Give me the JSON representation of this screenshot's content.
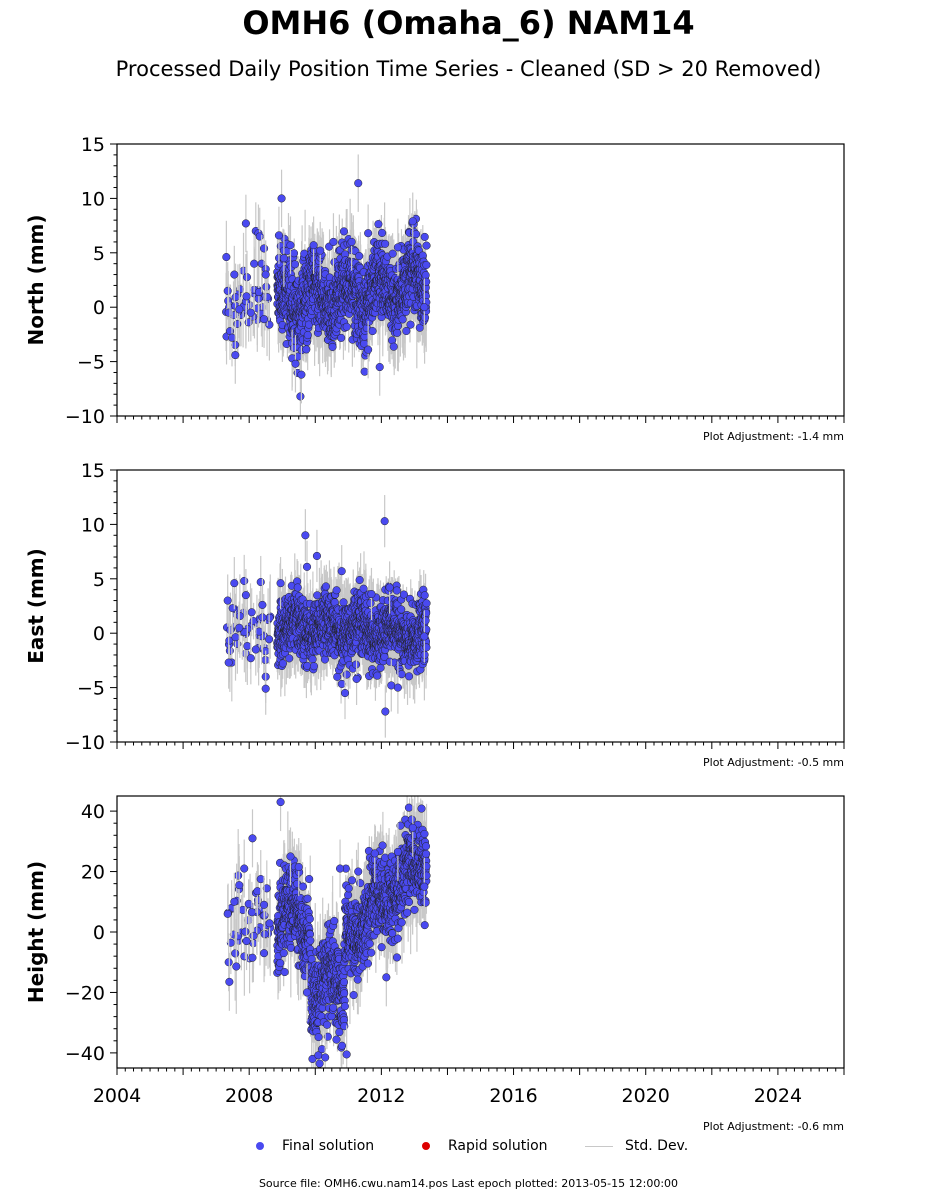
{
  "header": {
    "title": "OMH6 (Omaha_6) NAM14",
    "subtitle": "Processed Daily Position Time Series - Cleaned (SD > 20 Removed)"
  },
  "legend": {
    "final": "Final solution",
    "rapid": "Rapid solution",
    "stddev": "Std. Dev."
  },
  "footer": {
    "source": "Source file: OMH6.cwu.nam14.pos  Last epoch plotted: 2013-05-15 12:00:00"
  },
  "colors": {
    "final": "#4a4af0",
    "rapid": "#dd0000",
    "stddev": "#c8c8c8"
  },
  "chart_data": [
    {
      "type": "scatter",
      "ylabel": "North (mm)",
      "adjustment": "Plot Adjustment: -1.4 mm",
      "xlim": [
        2004,
        2026
      ],
      "ylim": [
        -10,
        15
      ],
      "xticks": [
        2004,
        2008,
        2012,
        2016,
        2020,
        2024
      ],
      "yticks": [
        -10,
        -5,
        0,
        5,
        10,
        15
      ],
      "series": [
        {
          "values": [
            [
              2007.35,
              1.5
            ],
            [
              2007.38,
              -0.5
            ],
            [
              2007.42,
              -2.2
            ],
            [
              2007.48,
              -2.8
            ],
            [
              2007.55,
              3.0
            ],
            [
              2007.58,
              -4.4
            ],
            [
              2007.7,
              -0.2
            ],
            [
              2007.9,
              7.7
            ],
            [
              2007.92,
              1.0
            ],
            [
              2008.05,
              -0.5
            ],
            [
              2008.15,
              4.0
            ],
            [
              2008.2,
              7.0
            ],
            [
              2008.28,
              6.8
            ],
            [
              2008.32,
              6.5
            ],
            [
              2008.38,
              4.0
            ],
            [
              2008.45,
              5.4
            ],
            [
              2008.45,
              -1.1
            ],
            [
              2008.5,
              3.5
            ],
            [
              2008.5,
              3.0
            ],
            [
              2008.9,
              6.6
            ],
            [
              2008.98,
              10.0
            ],
            [
              2009.05,
              4.5
            ],
            [
              2009.25,
              5.7
            ],
            [
              2009.3,
              -4.7
            ],
            [
              2009.4,
              -5.2
            ],
            [
              2009.55,
              -8.2
            ],
            [
              2009.58,
              -6.2
            ],
            [
              2009.95,
              5.7
            ],
            [
              2010.15,
              5.2
            ],
            [
              2010.55,
              6.0
            ],
            [
              2011.1,
              6.0
            ],
            [
              2011.3,
              11.4
            ],
            [
              2011.6,
              6.8
            ],
            [
              2011.6,
              -3.9
            ],
            [
              2011.95,
              -5.5
            ],
            [
              2012.5,
              5.5
            ],
            [
              2012.95,
              7.9
            ],
            [
              2013.3,
              0.0
            ]
          ]
        }
      ]
    },
    {
      "type": "scatter",
      "ylabel": "East (mm)",
      "adjustment": "Plot Adjustment: -0.5 mm",
      "xlim": [
        2004,
        2026
      ],
      "ylim": [
        -10,
        15
      ],
      "xticks": [
        2004,
        2008,
        2012,
        2016,
        2020,
        2024
      ],
      "yticks": [
        -10,
        -5,
        0,
        5,
        10,
        15
      ],
      "series": [
        {
          "values": [
            [
              2007.35,
              3.0
            ],
            [
              2007.38,
              -2.7
            ],
            [
              2007.5,
              2.3
            ],
            [
              2007.55,
              4.6
            ],
            [
              2007.7,
              0.5
            ],
            [
              2007.85,
              4.8
            ],
            [
              2007.9,
              3.5
            ],
            [
              2008.05,
              -2.3
            ],
            [
              2008.2,
              -1.5
            ],
            [
              2008.35,
              4.7
            ],
            [
              2008.4,
              2.6
            ],
            [
              2008.5,
              -4.0
            ],
            [
              2008.5,
              -5.1
            ],
            [
              2008.95,
              4.6
            ],
            [
              2009.7,
              9.0
            ],
            [
              2009.75,
              6.1
            ],
            [
              2010.05,
              7.1
            ],
            [
              2010.8,
              5.7
            ],
            [
              2010.9,
              -5.5
            ],
            [
              2011.25,
              -4.2
            ],
            [
              2011.7,
              3.6
            ],
            [
              2012.1,
              10.3
            ],
            [
              2012.12,
              -7.2
            ],
            [
              2012.25,
              4.2
            ],
            [
              2012.3,
              -4.8
            ],
            [
              2012.5,
              -5.0
            ],
            [
              2013.3,
              -0.3
            ]
          ]
        }
      ]
    },
    {
      "type": "scatter",
      "ylabel": "Height (mm)",
      "adjustment": "Plot Adjustment: -0.6 mm",
      "xlim": [
        2004,
        2026
      ],
      "ylim": [
        -45,
        45
      ],
      "xticks": [
        2004,
        2008,
        2012,
        2016,
        2020,
        2024
      ],
      "xtick_labels": [
        "2004",
        "2008",
        "2012",
        "2016",
        "2020",
        "2024"
      ],
      "yticks": [
        -40,
        -20,
        0,
        20,
        40
      ],
      "series": [
        {
          "values": [
            [
              2007.35,
              6.0
            ],
            [
              2007.38,
              -10.0
            ],
            [
              2007.4,
              -16.5
            ],
            [
              2007.55,
              10.0
            ],
            [
              2007.7,
              15.5
            ],
            [
              2007.85,
              21.0
            ],
            [
              2007.92,
              -3.0
            ],
            [
              2008.1,
              31.0
            ],
            [
              2008.25,
              13.5
            ],
            [
              2008.35,
              17.5
            ],
            [
              2008.45,
              9.0
            ],
            [
              2008.45,
              -7.0
            ],
            [
              2008.95,
              43.0
            ],
            [
              2009.25,
              25.0
            ],
            [
              2009.5,
              21.5
            ],
            [
              2009.75,
              -20.0
            ],
            [
              2010.3,
              -41.5
            ],
            [
              2010.75,
              21.0
            ],
            [
              2010.95,
              -40.5
            ],
            [
              2011.3,
              20.0
            ],
            [
              2011.8,
              26.0
            ],
            [
              2012.15,
              -15.0
            ],
            [
              2012.5,
              26.5
            ],
            [
              2012.95,
              34.5
            ],
            [
              2013.3,
              15.0
            ]
          ]
        }
      ]
    }
  ]
}
